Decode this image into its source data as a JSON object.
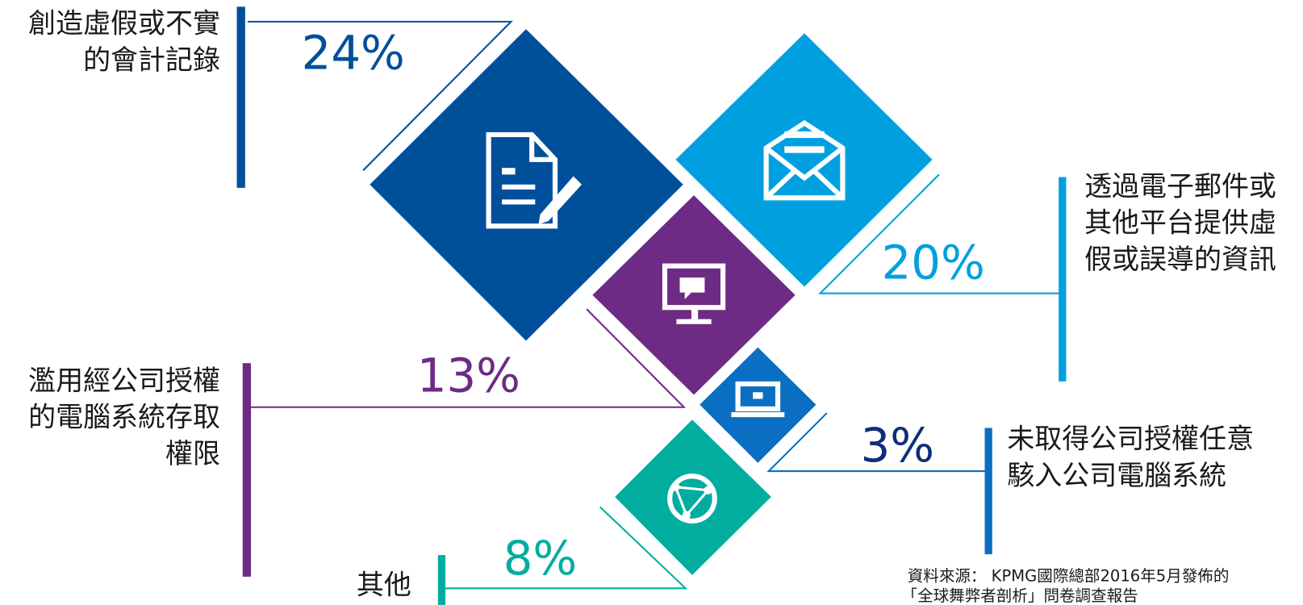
{
  "items": [
    {
      "label_lines": [
        "創造虛假或不實",
        "的會計記錄"
      ],
      "percent": "24%"
    },
    {
      "label_lines": [
        "透過電子郵件或",
        "其他平台提供虛",
        "假或誤導的資訊"
      ],
      "percent": "20%"
    },
    {
      "label_lines": [
        "濫用經公司授權",
        "的電腦系統存取",
        "權限"
      ],
      "percent": "13%"
    },
    {
      "label_lines": [
        "未取得公司授權任意",
        "駭入公司電腦系統"
      ],
      "percent": "3%"
    },
    {
      "label_lines": [
        "其他"
      ],
      "percent": "8%"
    }
  ],
  "source_lines": [
    "資料來源： KPMG國際總部2016年5月發佈的",
    "「全球舞弊者剖析」問卷調查報告"
  ]
}
